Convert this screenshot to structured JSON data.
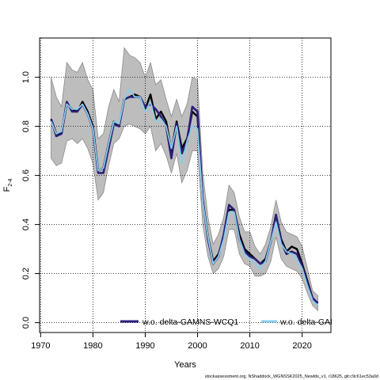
{
  "chart_data": {
    "type": "line",
    "title": "",
    "xlabel": "Years",
    "ylabel_main": "F",
    "ylabel_sub": "2-4",
    "xlim": [
      1969.8,
      2025.5
    ],
    "ylim": [
      -0.04,
      1.16
    ],
    "xticks": [
      1970,
      1980,
      1990,
      2000,
      2010,
      2020
    ],
    "yticks": [
      0.0,
      0.2,
      0.4,
      0.6,
      0.8,
      1.0
    ],
    "grid": true,
    "legend_position": "bottom",
    "x": [
      1972,
      1973,
      1974,
      1975,
      1976,
      1977,
      1978,
      1979,
      1980,
      1981,
      1982,
      1983,
      1984,
      1985,
      1986,
      1987,
      1988,
      1989,
      1990,
      1991,
      1992,
      1993,
      1994,
      1995,
      1996,
      1997,
      1998,
      1999,
      2000,
      2001,
      2002,
      2003,
      2004,
      2005,
      2006,
      2007,
      2008,
      2009,
      2010,
      2011,
      2012,
      2013,
      2014,
      2015,
      2016,
      2017,
      2018,
      2019,
      2020,
      2021,
      2022,
      2023
    ],
    "band": {
      "upper": [
        1.0,
        0.92,
        0.88,
        1.06,
        1.03,
        1.02,
        1.06,
        0.99,
        0.95,
        0.75,
        0.77,
        0.88,
        0.95,
        0.9,
        1.12,
        1.09,
        1.08,
        1.06,
        1.0,
        1.06,
        0.97,
        0.99,
        0.91,
        0.84,
        0.91,
        0.84,
        0.89,
        1.0,
        0.99,
        0.61,
        0.43,
        0.32,
        0.36,
        0.43,
        0.56,
        0.53,
        0.43,
        0.37,
        0.37,
        0.31,
        0.28,
        0.32,
        0.39,
        0.5,
        0.41,
        0.37,
        0.36,
        0.35,
        0.31,
        0.22,
        0.13,
        0.11
      ],
      "lower": [
        0.67,
        0.64,
        0.65,
        0.74,
        0.75,
        0.73,
        0.75,
        0.71,
        0.65,
        0.5,
        0.53,
        0.64,
        0.73,
        0.75,
        0.8,
        0.81,
        0.8,
        0.79,
        0.77,
        0.8,
        0.7,
        0.73,
        0.68,
        0.61,
        0.69,
        0.57,
        0.62,
        0.7,
        0.7,
        0.4,
        0.27,
        0.2,
        0.22,
        0.27,
        0.38,
        0.38,
        0.28,
        0.24,
        0.23,
        0.19,
        0.19,
        0.2,
        0.25,
        0.35,
        0.26,
        0.23,
        0.22,
        0.21,
        0.18,
        0.12,
        0.07,
        0.05
      ]
    },
    "series": [
      {
        "name": "",
        "color": "#000000",
        "values": [
          0.83,
          0.77,
          0.77,
          0.89,
          0.87,
          0.86,
          0.9,
          0.86,
          0.8,
          0.62,
          0.63,
          0.73,
          0.82,
          0.8,
          0.91,
          0.92,
          0.93,
          0.92,
          0.87,
          0.93,
          0.83,
          0.86,
          0.82,
          0.7,
          0.82,
          0.71,
          0.75,
          0.86,
          0.84,
          0.5,
          0.35,
          0.25,
          0.28,
          0.35,
          0.46,
          0.46,
          0.36,
          0.3,
          0.28,
          0.26,
          0.24,
          0.26,
          0.33,
          0.44,
          0.34,
          0.29,
          0.31,
          0.3,
          0.24,
          0.17,
          0.1,
          0.08
        ]
      },
      {
        "name": "w.o. delta-GAMNS-WCQ1",
        "color": "#2a1f7a",
        "values": [
          0.83,
          0.76,
          0.77,
          0.9,
          0.86,
          0.86,
          0.89,
          0.85,
          0.79,
          0.61,
          0.61,
          0.71,
          0.81,
          0.8,
          0.91,
          0.92,
          0.92,
          0.92,
          0.88,
          0.89,
          0.87,
          0.84,
          0.8,
          0.67,
          0.81,
          0.69,
          0.74,
          0.88,
          0.86,
          0.5,
          0.34,
          0.24,
          0.27,
          0.36,
          0.48,
          0.46,
          0.34,
          0.29,
          0.27,
          0.26,
          0.24,
          0.25,
          0.33,
          0.44,
          0.33,
          0.28,
          0.29,
          0.28,
          0.23,
          0.16,
          0.1,
          0.08
        ]
      },
      {
        "name": "w.o. delta-GAI",
        "color": "#87ceeb",
        "values": [
          0.82,
          0.77,
          0.78,
          0.89,
          0.87,
          0.87,
          0.89,
          0.85,
          0.79,
          0.62,
          0.63,
          0.73,
          0.82,
          0.81,
          0.91,
          0.95,
          0.92,
          0.92,
          0.86,
          0.9,
          0.82,
          0.83,
          0.8,
          0.71,
          0.8,
          0.65,
          0.74,
          0.8,
          0.79,
          0.49,
          0.35,
          0.24,
          0.27,
          0.34,
          0.45,
          0.45,
          0.34,
          0.28,
          0.26,
          0.24,
          0.22,
          0.25,
          0.33,
          0.41,
          0.32,
          0.29,
          0.28,
          0.26,
          0.22,
          0.15,
          0.09,
          0.07
        ]
      }
    ]
  },
  "footer_text": "stockassessment.org, NShaddock_WGNSSK2025_Newlds_v1, r18625, git:c9c61ec53a0d"
}
